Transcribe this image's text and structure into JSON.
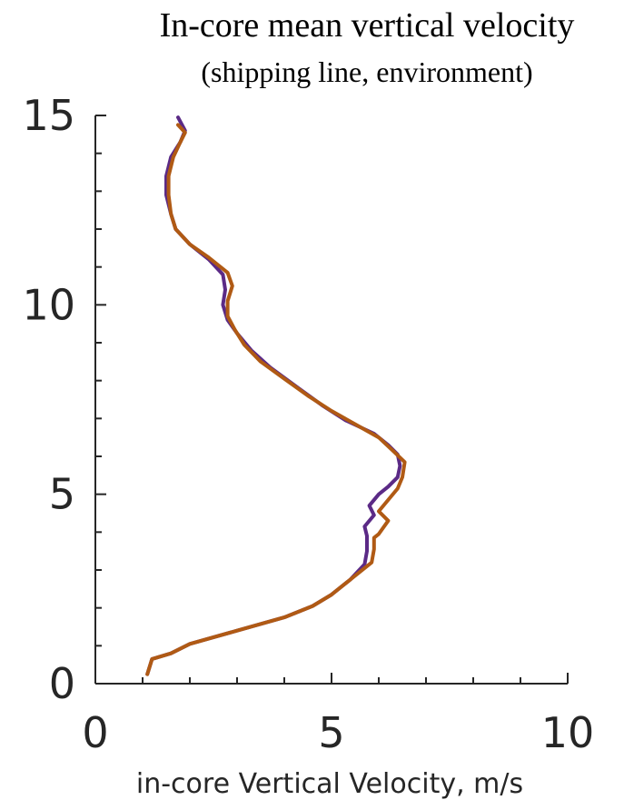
{
  "chart_data": {
    "type": "line",
    "title": "In-core mean vertical velocity",
    "subtitle": "(shipping line, environment)",
    "xlabel": "in-core Vertical Velocity, m/s",
    "ylabel": "",
    "xlim": [
      0,
      10
    ],
    "ylim": [
      0,
      15
    ],
    "x_ticks": [
      0,
      5,
      10
    ],
    "y_ticks": [
      0,
      5,
      10,
      15
    ],
    "x_minor_step": 1,
    "y_minor_step": 1,
    "grid": false,
    "series": [
      {
        "color": "#5b2a86",
        "points": [
          [
            1.1,
            0.25
          ],
          [
            1.2,
            0.65
          ],
          [
            1.6,
            0.8
          ],
          [
            2.0,
            1.05
          ],
          [
            3.0,
            1.4
          ],
          [
            4.0,
            1.75
          ],
          [
            4.6,
            2.05
          ],
          [
            5.0,
            2.35
          ],
          [
            5.4,
            2.75
          ],
          [
            5.7,
            3.15
          ],
          [
            5.75,
            3.5
          ],
          [
            5.75,
            3.9
          ],
          [
            5.7,
            4.15
          ],
          [
            5.9,
            4.45
          ],
          [
            5.8,
            4.7
          ],
          [
            6.0,
            5.0
          ],
          [
            6.2,
            5.2
          ],
          [
            6.4,
            5.45
          ],
          [
            6.45,
            5.75
          ],
          [
            6.4,
            6.05
          ],
          [
            6.2,
            6.3
          ],
          [
            5.9,
            6.6
          ],
          [
            5.3,
            6.95
          ],
          [
            4.8,
            7.35
          ],
          [
            4.3,
            7.8
          ],
          [
            3.7,
            8.35
          ],
          [
            3.3,
            8.8
          ],
          [
            3.0,
            9.25
          ],
          [
            2.8,
            9.6
          ],
          [
            2.7,
            10.0
          ],
          [
            2.75,
            10.4
          ],
          [
            2.7,
            10.8
          ],
          [
            2.4,
            11.2
          ],
          [
            2.0,
            11.6
          ],
          [
            1.7,
            12.0
          ],
          [
            1.6,
            12.4
          ],
          [
            1.5,
            12.9
          ],
          [
            1.5,
            13.4
          ],
          [
            1.6,
            13.9
          ],
          [
            1.8,
            14.3
          ],
          [
            1.9,
            14.6
          ],
          [
            1.75,
            14.95
          ]
        ]
      },
      {
        "color": "#b05a14",
        "points": [
          [
            1.1,
            0.25
          ],
          [
            1.2,
            0.65
          ],
          [
            1.6,
            0.8
          ],
          [
            2.0,
            1.05
          ],
          [
            3.0,
            1.4
          ],
          [
            4.0,
            1.75
          ],
          [
            4.6,
            2.05
          ],
          [
            5.0,
            2.35
          ],
          [
            5.4,
            2.75
          ],
          [
            5.85,
            3.2
          ],
          [
            5.9,
            3.55
          ],
          [
            5.9,
            3.85
          ],
          [
            6.0,
            3.95
          ],
          [
            6.2,
            4.3
          ],
          [
            6.0,
            4.55
          ],
          [
            6.2,
            4.85
          ],
          [
            6.4,
            5.15
          ],
          [
            6.5,
            5.45
          ],
          [
            6.55,
            5.85
          ],
          [
            6.3,
            6.15
          ],
          [
            6.0,
            6.5
          ],
          [
            5.5,
            6.85
          ],
          [
            5.0,
            7.2
          ],
          [
            4.5,
            7.6
          ],
          [
            4.0,
            8.05
          ],
          [
            3.5,
            8.5
          ],
          [
            3.15,
            8.95
          ],
          [
            2.95,
            9.35
          ],
          [
            2.8,
            9.7
          ],
          [
            2.8,
            10.1
          ],
          [
            2.9,
            10.5
          ],
          [
            2.8,
            10.85
          ],
          [
            2.4,
            11.25
          ],
          [
            2.0,
            11.6
          ],
          [
            1.7,
            12.0
          ],
          [
            1.6,
            12.4
          ],
          [
            1.55,
            12.9
          ],
          [
            1.55,
            13.4
          ],
          [
            1.65,
            13.9
          ],
          [
            1.8,
            14.3
          ],
          [
            1.9,
            14.55
          ],
          [
            1.75,
            14.75
          ]
        ]
      }
    ]
  }
}
